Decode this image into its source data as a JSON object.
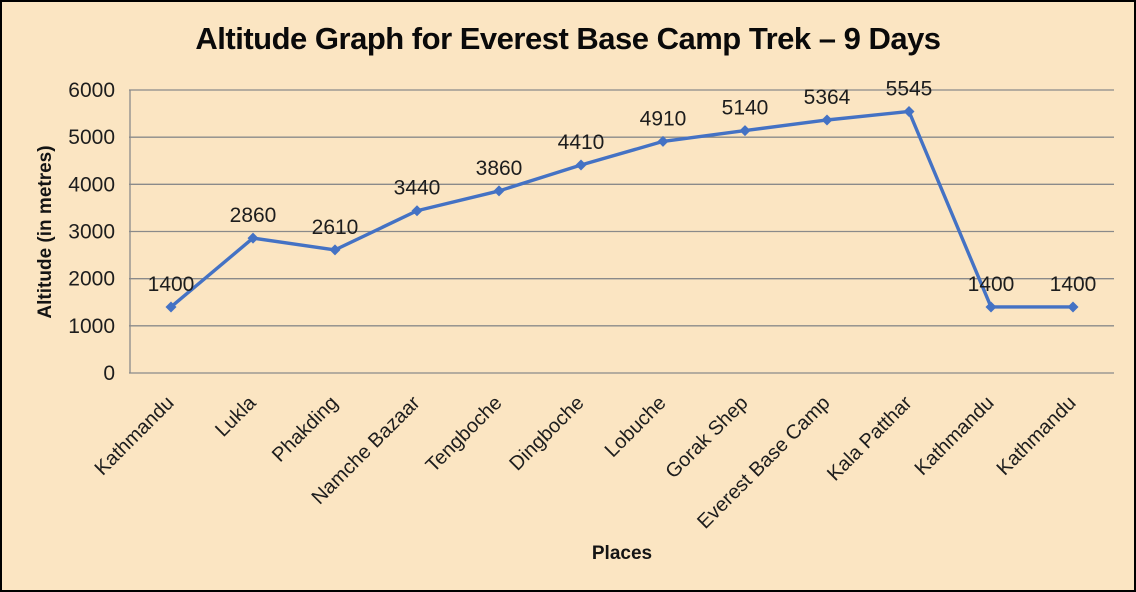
{
  "page": {
    "background_color": "#FBE5C2",
    "border_color": "#000000"
  },
  "chart_data": {
    "type": "line",
    "title": "Altitude Graph for Everest Base Camp Trek – 9 Days",
    "xlabel": "Places",
    "ylabel": "Altitude (in metres)",
    "categories": [
      "Kathmandu",
      "Lukla",
      "Phakding",
      "Namche Bazaar",
      "Tengboche",
      "Dingboche",
      "Lobuche",
      "Gorak Shep",
      "Everest Base Camp",
      "Kala Patthar",
      "Kathmandu",
      "Kathmandu"
    ],
    "values": [
      1400,
      2860,
      2610,
      3440,
      3860,
      4410,
      4910,
      5140,
      5364,
      5545,
      1400,
      1400
    ],
    "data_labels": [
      "1400",
      "2860",
      "2610",
      "3440",
      "3860",
      "4410",
      "4910",
      "5140",
      "5364",
      "5545",
      "1400",
      "1400"
    ],
    "y_ticks": [
      0,
      1000,
      2000,
      3000,
      4000,
      5000,
      6000
    ],
    "ylim": [
      0,
      6000
    ],
    "grid": "horizontal",
    "legend": "none",
    "marker": "diamond",
    "series_color": "#4472C4",
    "gridline_color": "#8A8A8A",
    "text_color": "#1D1D1D"
  }
}
